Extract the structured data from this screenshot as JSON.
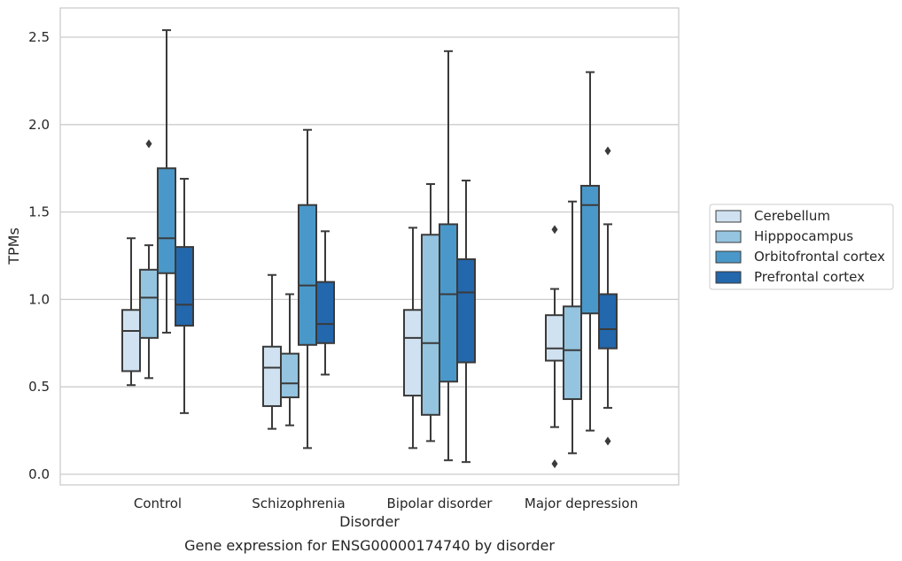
{
  "chart_data": {
    "type": "box",
    "caption": "Gene expression for ENSG00000174740 by disorder",
    "xlabel": "Disorder",
    "ylabel": "TPMs",
    "ylim": [
      -0.05,
      2.65
    ],
    "yticks": [
      0.0,
      0.5,
      1.0,
      1.5,
      2.0,
      2.5
    ],
    "ytick_labels": [
      "0.0",
      "0.5",
      "1.0",
      "1.5",
      "2.0",
      "2.5"
    ],
    "grid": "horizontal",
    "legend_position": "right",
    "categories": [
      "Control",
      "Schizophrenia",
      "Bipolar disorder",
      "Major depression"
    ],
    "series": [
      {
        "name": "Cerebellum",
        "color": "#d0e2f1",
        "boxes": [
          {
            "whisker_low": 0.51,
            "q1": 0.59,
            "median": 0.82,
            "q3": 0.94,
            "whisker_high": 1.35,
            "outliers": []
          },
          {
            "whisker_low": 0.26,
            "q1": 0.39,
            "median": 0.61,
            "q3": 0.73,
            "whisker_high": 1.14,
            "outliers": []
          },
          {
            "whisker_low": 0.15,
            "q1": 0.45,
            "median": 0.78,
            "q3": 0.94,
            "whisker_high": 1.41,
            "outliers": []
          },
          {
            "whisker_low": 0.27,
            "q1": 0.65,
            "median": 0.72,
            "q3": 0.91,
            "whisker_high": 1.06,
            "outliers": [
              1.4,
              0.06
            ]
          }
        ]
      },
      {
        "name": "Hipppocampus",
        "color": "#94c4df",
        "boxes": [
          {
            "whisker_low": 0.55,
            "q1": 0.78,
            "median": 1.01,
            "q3": 1.17,
            "whisker_high": 1.31,
            "outliers": [
              1.89
            ]
          },
          {
            "whisker_low": 0.28,
            "q1": 0.44,
            "median": 0.52,
            "q3": 0.69,
            "whisker_high": 1.03,
            "outliers": []
          },
          {
            "whisker_low": 0.19,
            "q1": 0.34,
            "median": 0.75,
            "q3": 1.37,
            "whisker_high": 1.66,
            "outliers": []
          },
          {
            "whisker_low": 0.12,
            "q1": 0.43,
            "median": 0.71,
            "q3": 0.96,
            "whisker_high": 1.56,
            "outliers": []
          }
        ]
      },
      {
        "name": "Orbitofrontal cortex",
        "color": "#4a98c9",
        "boxes": [
          {
            "whisker_low": 0.81,
            "q1": 1.15,
            "median": 1.35,
            "q3": 1.75,
            "whisker_high": 2.54,
            "outliers": []
          },
          {
            "whisker_low": 0.15,
            "q1": 0.74,
            "median": 1.08,
            "q3": 1.54,
            "whisker_high": 1.97,
            "outliers": []
          },
          {
            "whisker_low": 0.08,
            "q1": 0.53,
            "median": 1.03,
            "q3": 1.43,
            "whisker_high": 2.42,
            "outliers": []
          },
          {
            "whisker_low": 0.25,
            "q1": 0.92,
            "median": 1.54,
            "q3": 1.65,
            "whisker_high": 2.3,
            "outliers": []
          }
        ]
      },
      {
        "name": "Prefrontal cortex",
        "color": "#2367ac",
        "boxes": [
          {
            "whisker_low": 0.35,
            "q1": 0.85,
            "median": 0.97,
            "q3": 1.3,
            "whisker_high": 1.69,
            "outliers": []
          },
          {
            "whisker_low": 0.57,
            "q1": 0.75,
            "median": 0.86,
            "q3": 1.1,
            "whisker_high": 1.39,
            "outliers": []
          },
          {
            "whisker_low": 0.07,
            "q1": 0.64,
            "median": 1.04,
            "q3": 1.23,
            "whisker_high": 1.68,
            "outliers": []
          },
          {
            "whisker_low": 0.38,
            "q1": 0.72,
            "median": 0.83,
            "q3": 1.03,
            "whisker_high": 1.43,
            "outliers": [
              1.85,
              0.19
            ]
          }
        ]
      }
    ]
  }
}
